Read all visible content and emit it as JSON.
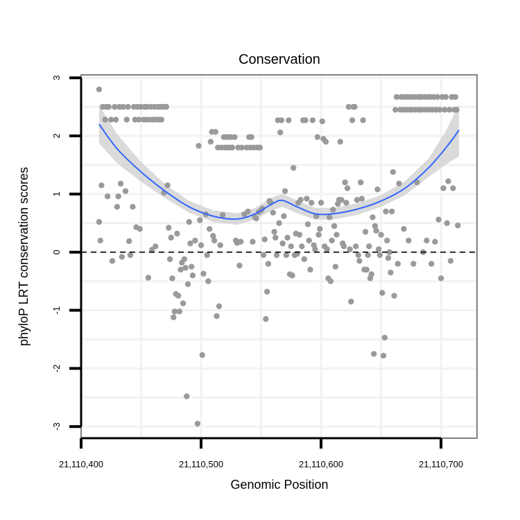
{
  "chart_data": {
    "type": "scatter",
    "title": "Conservation",
    "xlabel": "Genomic Position",
    "ylabel": "phyloP LRT conservation scores",
    "xlim": [
      21110400,
      21110730
    ],
    "ylim": [
      -3.2,
      3.05
    ],
    "x_ticks": [
      21110400,
      21110500,
      21110600,
      21110700
    ],
    "x_tick_labels": [
      "21,110,400",
      "21,110,500",
      "21,110,600",
      "21,110,700"
    ],
    "y_ticks": [
      -3,
      -2,
      -1,
      0,
      1,
      2,
      3
    ],
    "y_tick_labels": [
      "-3",
      "-2",
      "-1",
      "0",
      "1",
      "2",
      "3"
    ],
    "reference_line": {
      "y": 0,
      "style": "dashed",
      "color": "#000000"
    },
    "grid": true,
    "colors": {
      "points": "#9a9a9a",
      "smooth_line": "#3366ff",
      "ribbon": "#d3d3d3",
      "panel_border": "#808080",
      "grid": "#f2f2f2"
    },
    "smooth": {
      "x": [
        21110415,
        21110430,
        21110450,
        21110470,
        21110490,
        21110510,
        21110530,
        21110545,
        21110560,
        21110568,
        21110580,
        21110595,
        21110610,
        21110630,
        21110650,
        21110670,
        21110690,
        21110705,
        21110715
      ],
      "y": [
        2.2,
        1.78,
        1.38,
        1.05,
        0.78,
        0.62,
        0.57,
        0.66,
        0.84,
        0.89,
        0.78,
        0.66,
        0.66,
        0.74,
        0.88,
        1.1,
        1.46,
        1.82,
        2.1
      ],
      "band": [
        0.33,
        0.25,
        0.17,
        0.12,
        0.1,
        0.1,
        0.1,
        0.1,
        0.11,
        0.11,
        0.11,
        0.1,
        0.1,
        0.1,
        0.1,
        0.12,
        0.16,
        0.3,
        0.45
      ]
    },
    "points": [
      [
        21110415,
        2.8
      ],
      [
        21110415,
        0.52
      ],
      [
        21110416,
        0.2
      ],
      [
        21110417,
        1.15
      ],
      [
        21110418,
        2.5
      ],
      [
        21110420,
        2.28
      ],
      [
        21110421,
        2.5
      ],
      [
        21110422,
        0.96
      ],
      [
        21110423,
        2.5
      ],
      [
        21110425,
        2.28
      ],
      [
        21110426,
        -0.15
      ],
      [
        21110428,
        2.5
      ],
      [
        21110429,
        2.28
      ],
      [
        21110430,
        0.78
      ],
      [
        21110431,
        0.96
      ],
      [
        21110432,
        2.5
      ],
      [
        21110433,
        1.18
      ],
      [
        21110434,
        -0.08
      ],
      [
        21110435,
        2.5
      ],
      [
        21110437,
        1.05
      ],
      [
        21110438,
        2.28
      ],
      [
        21110439,
        2.5
      ],
      [
        21110440,
        0.19
      ],
      [
        21110441,
        -0.05
      ],
      [
        21110443,
        0.78
      ],
      [
        21110444,
        2.5
      ],
      [
        21110445,
        2.28
      ],
      [
        21110446,
        0.43
      ],
      [
        21110447,
        2.5
      ],
      [
        21110448,
        2.28
      ],
      [
        21110449,
        0.4
      ],
      [
        21110450,
        2.5
      ],
      [
        21110452,
        2.28
      ],
      [
        21110453,
        2.5
      ],
      [
        21110454,
        2.28
      ],
      [
        21110455,
        2.5
      ],
      [
        21110456,
        -0.44
      ],
      [
        21110457,
        2.28
      ],
      [
        21110458,
        2.5
      ],
      [
        21110459,
        0.04
      ],
      [
        21110460,
        2.28
      ],
      [
        21110461,
        2.5
      ],
      [
        21110462,
        0.1
      ],
      [
        21110463,
        2.28
      ],
      [
        21110464,
        2.5
      ],
      [
        21110465,
        2.28
      ],
      [
        21110466,
        2.5
      ],
      [
        21110467,
        2.28
      ],
      [
        21110468,
        2.5
      ],
      [
        21110469,
        1.02
      ],
      [
        21110470,
        2.5
      ],
      [
        21110471,
        2.5
      ],
      [
        21110472,
        1.15
      ],
      [
        21110473,
        0.42
      ],
      [
        21110474,
        -0.12
      ],
      [
        21110475,
        0.25
      ],
      [
        21110476,
        -0.45
      ],
      [
        21110477,
        -1.12
      ],
      [
        21110478,
        -1.02
      ],
      [
        21110479,
        -0.72
      ],
      [
        21110480,
        0.32
      ],
      [
        21110481,
        -0.75
      ],
      [
        21110482,
        -1.02
      ],
      [
        21110483,
        -0.3
      ],
      [
        21110484,
        -0.18
      ],
      [
        21110485,
        -0.88
      ],
      [
        21110486,
        -0.12
      ],
      [
        21110487,
        -0.27
      ],
      [
        21110488,
        -2.48
      ],
      [
        21110489,
        -0.55
      ],
      [
        21110490,
        0.52
      ],
      [
        21110491,
        0.15
      ],
      [
        21110492,
        -0.25
      ],
      [
        21110493,
        -0.4
      ],
      [
        21110495,
        0.2
      ],
      [
        21110497,
        -2.95
      ],
      [
        21110498,
        1.83
      ],
      [
        21110499,
        0.55
      ],
      [
        21110500,
        0.12
      ],
      [
        21110501,
        -1.77
      ],
      [
        21110502,
        -0.37
      ],
      [
        21110504,
        0.65
      ],
      [
        21110505,
        -0.05
      ],
      [
        21110506,
        -0.5
      ],
      [
        21110507,
        0.4
      ],
      [
        21110508,
        1.9
      ],
      [
        21110509,
        2.07
      ],
      [
        21110510,
        0.28
      ],
      [
        21110511,
        0.2
      ],
      [
        21110512,
        2.07
      ],
      [
        21110513,
        -1.1
      ],
      [
        21110514,
        1.8
      ],
      [
        21110515,
        -0.93
      ],
      [
        21110516,
        0.12
      ],
      [
        21110517,
        1.8
      ],
      [
        21110518,
        0.64
      ],
      [
        21110519,
        1.98
      ],
      [
        21110520,
        1.8
      ],
      [
        21110521,
        1.98
      ],
      [
        21110522,
        1.8
      ],
      [
        21110523,
        1.98
      ],
      [
        21110524,
        1.8
      ],
      [
        21110525,
        1.98
      ],
      [
        21110526,
        1.8
      ],
      [
        21110528,
        1.98
      ],
      [
        21110529,
        0.2
      ],
      [
        21110530,
        0.16
      ],
      [
        21110531,
        1.8
      ],
      [
        21110532,
        -0.23
      ],
      [
        21110533,
        0.18
      ],
      [
        21110534,
        1.8
      ],
      [
        21110536,
        0.65
      ],
      [
        21110538,
        1.8
      ],
      [
        21110539,
        0.7
      ],
      [
        21110540,
        1.98
      ],
      [
        21110541,
        1.8
      ],
      [
        21110542,
        1.98
      ],
      [
        21110543,
        0.18
      ],
      [
        21110544,
        1.8
      ],
      [
        21110545,
        0.6
      ],
      [
        21110546,
        0.58
      ],
      [
        21110547,
        1.8
      ],
      [
        21110548,
        0.69
      ],
      [
        21110549,
        1.8
      ],
      [
        21110550,
        0.72
      ],
      [
        21110551,
        0.75
      ],
      [
        21110552,
        -0.05
      ],
      [
        21110553,
        0.22
      ],
      [
        21110554,
        -1.15
      ],
      [
        21110555,
        -0.68
      ],
      [
        21110556,
        -0.2
      ],
      [
        21110557,
        0.88
      ],
      [
        21110558,
        0.85
      ],
      [
        21110560,
        0.68
      ],
      [
        21110561,
        0.35
      ],
      [
        21110562,
        0.25
      ],
      [
        21110563,
        -0.05
      ],
      [
        21110564,
        2.27
      ],
      [
        21110565,
        0.5
      ],
      [
        21110566,
        2.06
      ],
      [
        21110567,
        2.27
      ],
      [
        21110568,
        0.15
      ],
      [
        21110569,
        0.62
      ],
      [
        21110570,
        1.05
      ],
      [
        21110571,
        -0.05
      ],
      [
        21110572,
        0.25
      ],
      [
        21110573,
        2.27
      ],
      [
        21110574,
        -0.38
      ],
      [
        21110575,
        0.1
      ],
      [
        21110576,
        -0.4
      ],
      [
        21110577,
        1.45
      ],
      [
        21110578,
        -0.05
      ],
      [
        21110579,
        0.32
      ],
      [
        21110580,
        -0.03
      ],
      [
        21110581,
        0.85
      ],
      [
        21110582,
        0.3
      ],
      [
        21110583,
        0.9
      ],
      [
        21110584,
        0.1
      ],
      [
        21110585,
        2.27
      ],
      [
        21110586,
        -0.12
      ],
      [
        21110587,
        2.27
      ],
      [
        21110588,
        0.92
      ],
      [
        21110589,
        0.48
      ],
      [
        21110590,
        0.2
      ],
      [
        21110591,
        -0.3
      ],
      [
        21110592,
        0.85
      ],
      [
        21110593,
        2.27
      ],
      [
        21110594,
        0.12
      ],
      [
        21110595,
        0.05
      ],
      [
        21110596,
        0.62
      ],
      [
        21110597,
        1.98
      ],
      [
        21110598,
        0.3
      ],
      [
        21110599,
        0.4
      ],
      [
        21110600,
        0.85
      ],
      [
        21110601,
        2.25
      ],
      [
        21110602,
        1.95
      ],
      [
        21110603,
        0.1
      ],
      [
        21110604,
        1.9
      ],
      [
        21110605,
        0.05
      ],
      [
        21110606,
        -0.45
      ],
      [
        21110607,
        0.6
      ],
      [
        21110608,
        -0.5
      ],
      [
        21110609,
        0.2
      ],
      [
        21110610,
        0.73
      ],
      [
        21110611,
        0.45
      ],
      [
        21110612,
        -0.25
      ],
      [
        21110613,
        0.3
      ],
      [
        21110614,
        0.83
      ],
      [
        21110615,
        0.9
      ],
      [
        21110616,
        1.9
      ],
      [
        21110617,
        0.9
      ],
      [
        21110618,
        0.15
      ],
      [
        21110619,
        0.1
      ],
      [
        21110620,
        1.2
      ],
      [
        21110621,
        0.85
      ],
      [
        21110622,
        1.1
      ],
      [
        21110623,
        2.5
      ],
      [
        21110624,
        0.05
      ],
      [
        21110625,
        -0.85
      ],
      [
        21110626,
        2.27
      ],
      [
        21110627,
        2.5
      ],
      [
        21110628,
        2.5
      ],
      [
        21110629,
        0.1
      ],
      [
        21110630,
        0.9
      ],
      [
        21110631,
        -0.05
      ],
      [
        21110632,
        -0.15
      ],
      [
        21110633,
        1.2
      ],
      [
        21110634,
        0.92
      ],
      [
        21110635,
        2.27
      ],
      [
        21110636,
        -0.3
      ],
      [
        21110637,
        0.35
      ],
      [
        21110638,
        -0.3
      ],
      [
        21110639,
        -0.05
      ],
      [
        21110640,
        0.1
      ],
      [
        21110641,
        -0.45
      ],
      [
        21110642,
        -0.38
      ],
      [
        21110643,
        0.6
      ],
      [
        21110644,
        -1.75
      ],
      [
        21110645,
        0.45
      ],
      [
        21110646,
        0.37
      ],
      [
        21110647,
        1.08
      ],
      [
        21110648,
        0.05
      ],
      [
        21110649,
        -0.05
      ],
      [
        21110650,
        0.3
      ],
      [
        21110651,
        -0.7
      ],
      [
        21110652,
        -1.78
      ],
      [
        21110653,
        -1.47
      ],
      [
        21110654,
        0.7
      ],
      [
        21110655,
        0.2
      ],
      [
        21110656,
        -0.1
      ],
      [
        21110657,
        0.0
      ],
      [
        21110658,
        -0.35
      ],
      [
        21110659,
        0.7
      ],
      [
        21110660,
        1.38
      ],
      [
        21110661,
        -0.75
      ],
      [
        21110662,
        2.45
      ],
      [
        21110663,
        2.67
      ],
      [
        21110664,
        -0.2
      ],
      [
        21110665,
        1.18
      ],
      [
        21110666,
        2.45
      ],
      [
        21110667,
        2.67
      ],
      [
        21110668,
        2.45
      ],
      [
        21110669,
        0.4
      ],
      [
        21110670,
        2.67
      ],
      [
        21110671,
        2.45
      ],
      [
        21110672,
        2.67
      ],
      [
        21110673,
        0.2
      ],
      [
        21110674,
        2.45
      ],
      [
        21110675,
        2.67
      ],
      [
        21110676,
        2.45
      ],
      [
        21110677,
        -0.2
      ],
      [
        21110678,
        2.67
      ],
      [
        21110679,
        2.45
      ],
      [
        21110680,
        1.2
      ],
      [
        21110681,
        2.67
      ],
      [
        21110682,
        2.45
      ],
      [
        21110683,
        2.67
      ],
      [
        21110684,
        2.45
      ],
      [
        21110685,
        0.0
      ],
      [
        21110686,
        2.67
      ],
      [
        21110687,
        2.45
      ],
      [
        21110688,
        0.2
      ],
      [
        21110689,
        2.67
      ],
      [
        21110690,
        2.45
      ],
      [
        21110691,
        2.67
      ],
      [
        21110692,
        -0.2
      ],
      [
        21110693,
        2.45
      ],
      [
        21110694,
        2.67
      ],
      [
        21110695,
        0.18
      ],
      [
        21110696,
        2.45
      ],
      [
        21110697,
        2.67
      ],
      [
        21110698,
        0.56
      ],
      [
        21110699,
        2.45
      ],
      [
        21110700,
        -0.45
      ],
      [
        21110701,
        2.67
      ],
      [
        21110702,
        1.1
      ],
      [
        21110703,
        2.45
      ],
      [
        21110704,
        2.67
      ],
      [
        21110705,
        0.5
      ],
      [
        21110706,
        1.22
      ],
      [
        21110707,
        2.45
      ],
      [
        21110708,
        -0.15
      ],
      [
        21110709,
        2.67
      ],
      [
        21110710,
        1.1
      ],
      [
        21110711,
        2.45
      ],
      [
        21110712,
        2.67
      ],
      [
        21110713,
        2.45
      ],
      [
        21110714,
        0.46
      ]
    ]
  }
}
